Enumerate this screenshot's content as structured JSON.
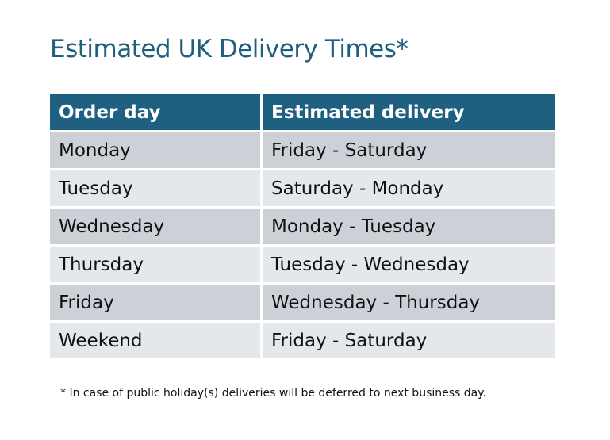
{
  "title": "Estimated UK Delivery Times*",
  "table": {
    "headers": [
      "Order day",
      "Estimated delivery"
    ],
    "rows": [
      [
        "Monday",
        "Friday - Saturday"
      ],
      [
        "Tuesday",
        "Saturday - Monday"
      ],
      [
        "Wednesday",
        "Monday - Tuesday"
      ],
      [
        "Thursday",
        "Tuesday - Wednesday"
      ],
      [
        "Friday",
        "Wednesday - Thursday"
      ],
      [
        "Weekend",
        "Friday - Saturday"
      ]
    ]
  },
  "footnote": "* In case of public holiday(s) deliveries will be deferred to next business day.",
  "colors": {
    "header": "#1f6080",
    "title": "#1f5f7e",
    "row_dark": "#cdd1d7",
    "row_light": "#e5e8eb"
  }
}
